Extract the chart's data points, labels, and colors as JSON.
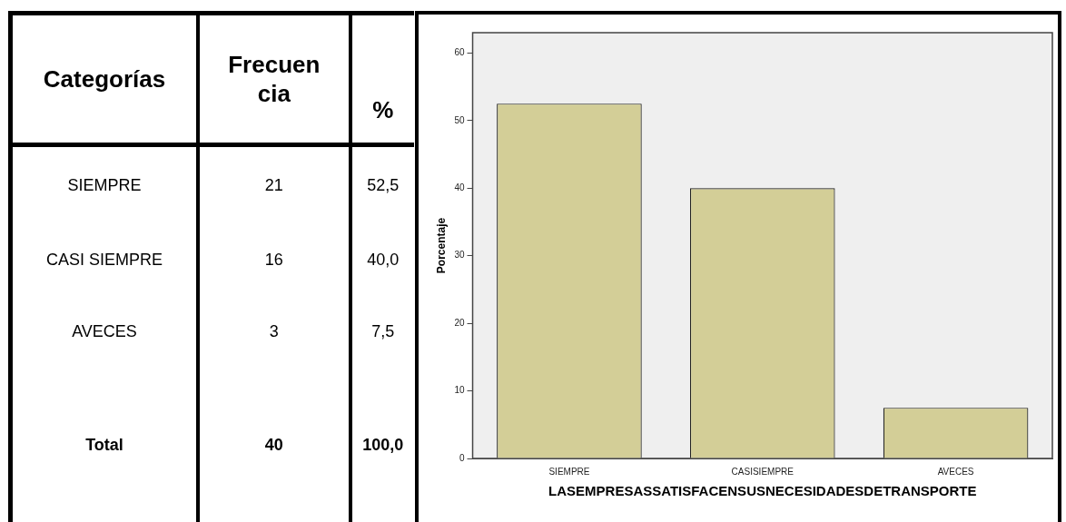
{
  "chart_data": [
    {
      "type": "other",
      "xlabel": "Categorías",
      "categories": [
        "SIEMPRE",
        "CASI SIEMPRE",
        "AVECES",
        "Total"
      ],
      "series": [
        {
          "name": "Frecuencia",
          "values": [
            21,
            16,
            3,
            40
          ],
          "value_labels": [
            "21",
            "16",
            "3",
            "40"
          ]
        },
        {
          "name": "%",
          "values": [
            52.5,
            40.0,
            7.5,
            100.0
          ],
          "value_labels": [
            "52,5",
            "40,0",
            "7,5",
            "100,0"
          ]
        }
      ]
    },
    {
      "type": "bar",
      "categories": [
        "SIEMPRE",
        "CASISIEMPRE",
        "AVECES"
      ],
      "values": [
        52.5,
        40.0,
        7.5
      ],
      "color": "#d3ce97",
      "ylabel": "Porcentaje",
      "xlabel": "LASEMPRESASSATISFACENSUSNECESIDADESDETRANSPORTE",
      "ylim": [
        0,
        63
      ],
      "yticks": [
        0,
        10,
        20,
        30,
        40,
        50,
        60
      ],
      "grid": false,
      "legend": false
    }
  ]
}
